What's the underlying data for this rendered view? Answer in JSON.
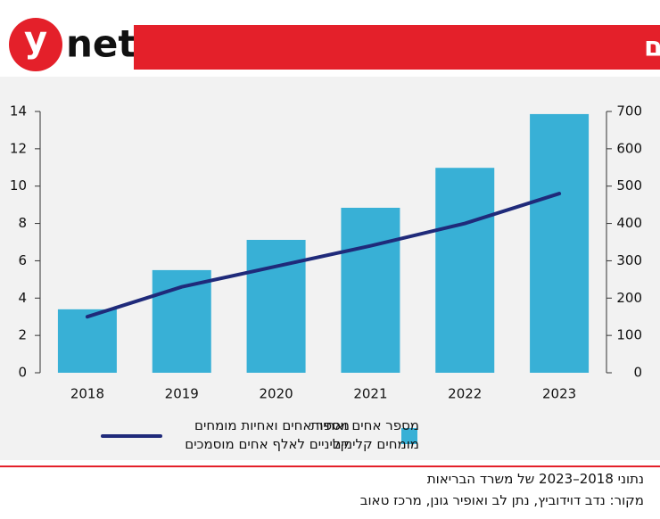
{
  "header": {
    "logo": {
      "y": "y",
      "net": "net"
    },
    "title": "אחיות ואחים מומחים קליניים"
  },
  "chart_data": {
    "type": "combo",
    "categories": [
      "2018",
      "2019",
      "2020",
      "2021",
      "2022",
      "2023"
    ],
    "series": [
      {
        "name": "מספר אחים ואחיות מומחים קליניים",
        "type": "bar",
        "axis": "y2",
        "color": "#38b0d6",
        "values": [
          170,
          275,
          356,
          442,
          549,
          693
        ]
      },
      {
        "name": "מספר אחים ואחיות מומחים קליניים לאלף אחים מוסמכים",
        "type": "line",
        "axis": "y",
        "color": "#1f2a7a",
        "values": [
          3.0,
          4.6,
          5.7,
          6.8,
          8.0,
          9.6
        ]
      }
    ],
    "ylim": [
      0,
      14
    ],
    "yticks": [
      0,
      2,
      4,
      6,
      8,
      10,
      12,
      14
    ],
    "y2lim": [
      0,
      700
    ],
    "y2ticks": [
      0,
      100,
      200,
      300,
      400,
      500,
      600,
      700
    ]
  },
  "footer": {
    "lines": [
      "נתוני 2018–2023 של משרד הבריאות",
      "מקור: נדב דוידוביץ, נתן לב ואופיר גונן, מרכז טאוב"
    ]
  }
}
